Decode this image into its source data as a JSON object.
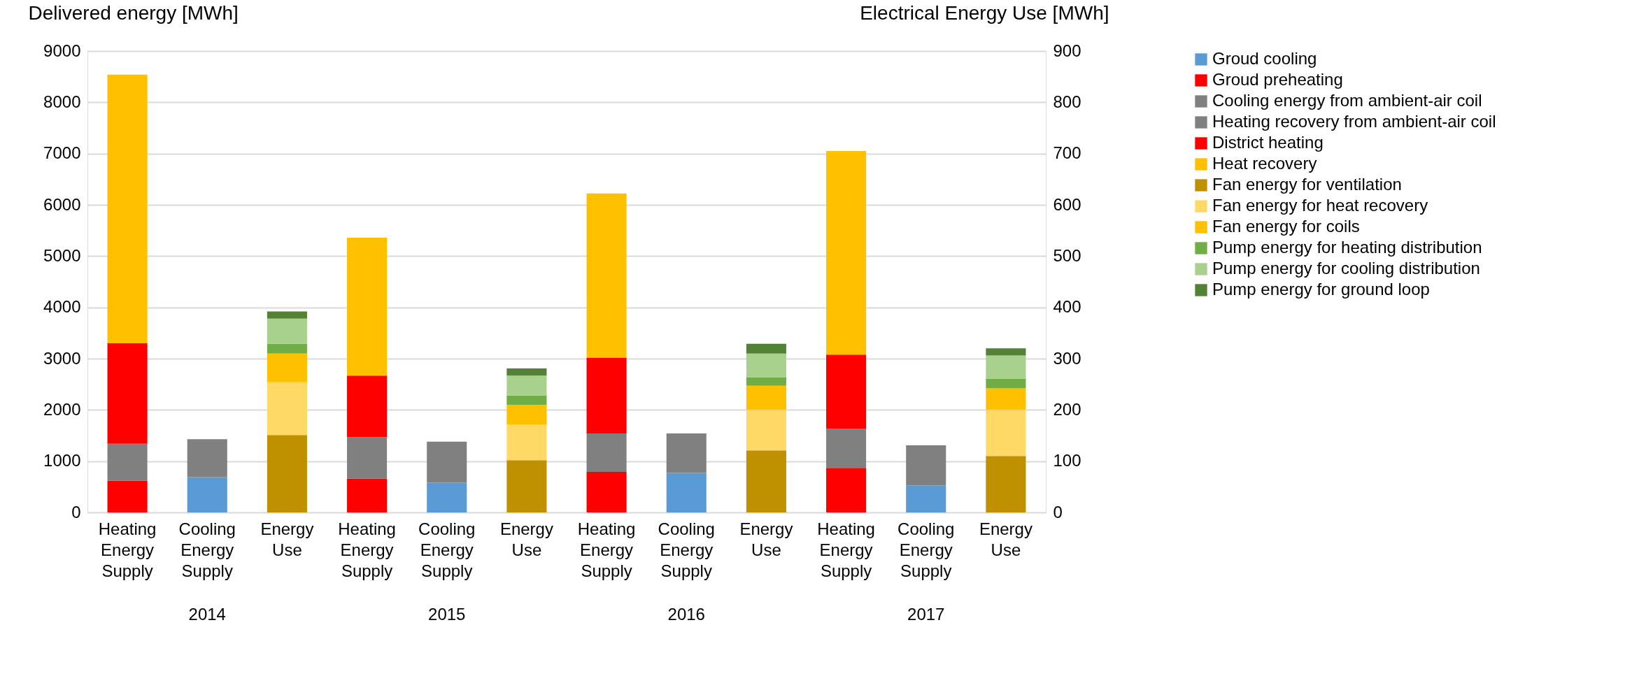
{
  "chart_data": {
    "type": "bar",
    "stacked": true,
    "ylabel": "Delivered energy [MWh]",
    "y2label": "Electrical Energy Use [MWh]",
    "categories": [
      "Heating Energy Supply",
      "Cooling Energy Supply",
      "Energy Use",
      "Heating Energy Supply",
      "Cooling Energy Supply",
      "Energy Use",
      "Heating Energy Supply",
      "Cooling Energy Supply",
      "Energy Use",
      "Heating Energy Supply",
      "Cooling Energy Supply",
      "Energy Use"
    ],
    "annotations": [
      "2014",
      "2015",
      "2016",
      "2017"
    ],
    "ylim": [
      0,
      9000
    ],
    "yticks": [
      0,
      1000,
      2000,
      3000,
      4000,
      5000,
      6000,
      7000,
      8000,
      9000
    ],
    "y2lim": [
      0,
      900
    ],
    "y2ticks": [
      0,
      100,
      200,
      300,
      400,
      500,
      600,
      700,
      800,
      900
    ],
    "grid": "y",
    "legend": "right",
    "series": [
      {
        "name": "Groud cooling",
        "color": "#5b9bd5",
        "values": [
          null,
          690,
          null,
          null,
          580,
          null,
          null,
          770,
          null,
          null,
          530,
          null
        ]
      },
      {
        "name": "Groud preheating",
        "color": "#ff0000",
        "values": [
          620,
          null,
          null,
          660,
          null,
          null,
          790,
          null,
          null,
          870,
          null,
          null
        ]
      },
      {
        "name": "Cooling energy from ambient-air coil",
        "color": "#808080",
        "values": [
          null,
          740,
          null,
          null,
          800,
          null,
          null,
          770,
          null,
          null,
          780,
          null
        ]
      },
      {
        "name": "Heating recovery from ambient-air coil",
        "color": "#808080",
        "values": [
          720,
          null,
          null,
          810,
          null,
          null,
          750,
          null,
          null,
          760,
          null,
          null
        ]
      },
      {
        "name": "District heating",
        "color": "#ff0000",
        "values": [
          1960,
          null,
          null,
          1200,
          null,
          null,
          1480,
          null,
          null,
          1450,
          null,
          null
        ]
      },
      {
        "name": "Heat recovery",
        "color": "#ffc000",
        "values": [
          5240,
          null,
          null,
          2690,
          null,
          null,
          3200,
          null,
          null,
          3970,
          null,
          null
        ]
      },
      {
        "name": "Fan energy for ventilation",
        "color": "#bf9000",
        "axis": "y2",
        "values": [
          null,
          null,
          151,
          null,
          null,
          102,
          null,
          null,
          121,
          null,
          null,
          110
        ]
      },
      {
        "name": "Fan energy for heat recovery",
        "color": "#ffd966",
        "axis": "y2",
        "values": [
          null,
          null,
          103,
          null,
          null,
          69,
          null,
          null,
          79,
          null,
          null,
          90
        ]
      },
      {
        "name": "Fan energy for coils",
        "color": "#ffc000",
        "axis": "y2",
        "values": [
          null,
          null,
          56,
          null,
          null,
          39,
          null,
          null,
          47,
          null,
          null,
          42
        ]
      },
      {
        "name": "Pump energy for heating distribution",
        "color": "#70ad47",
        "axis": "y2",
        "values": [
          null,
          null,
          19,
          null,
          null,
          18,
          null,
          null,
          17,
          null,
          null,
          19
        ]
      },
      {
        "name": "Pump energy for cooling distribution",
        "color": "#a9d18e",
        "axis": "y2",
        "values": [
          null,
          null,
          49,
          null,
          null,
          39,
          null,
          null,
          46,
          null,
          null,
          45
        ]
      },
      {
        "name": "Pump energy for ground loop",
        "color": "#548235",
        "axis": "y2",
        "values": [
          null,
          null,
          14,
          null,
          null,
          14,
          null,
          null,
          19,
          null,
          null,
          14
        ]
      }
    ]
  }
}
